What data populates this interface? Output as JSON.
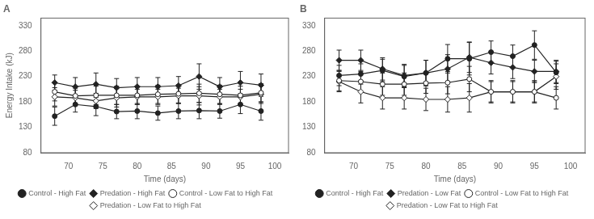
{
  "chart_data": [
    {
      "type": "line",
      "title": "A",
      "xlabel": "Time (days)",
      "ylabel": "Energy Intake (kJ)",
      "x": [
        68,
        71,
        74,
        77,
        80,
        83,
        86,
        89,
        92,
        95,
        98
      ],
      "series": [
        {
          "name": "Control - High Fat",
          "color": "#222222",
          "marker": "circle",
          "line_style": "solid",
          "values": [
            152,
            175,
            171,
            161,
            162,
            158,
            162,
            163,
            162,
            175,
            162
          ],
          "yerr": [
            18,
            15,
            18,
            14,
            15,
            14,
            15,
            16,
            14,
            18,
            18
          ]
        },
        {
          "name": "Predation - High Fat",
          "color": "#222222",
          "marker": "diamond",
          "line_style": "solid",
          "values": [
            218,
            210,
            215,
            208,
            210,
            210,
            212,
            230,
            210,
            218,
            213
          ],
          "yerr": [
            15,
            18,
            22,
            18,
            18,
            18,
            18,
            25,
            18,
            22,
            22
          ]
        },
        {
          "name": "Control - Low Fat to High Fat",
          "color": "#222222",
          "marker": "open circle",
          "line_style": "solid",
          "values": [
            200,
            192,
            193,
            193,
            193,
            195,
            196,
            197,
            195,
            193,
            198
          ],
          "yerr": [
            18,
            15,
            18,
            18,
            18,
            18,
            18,
            18,
            18,
            18,
            18
          ]
        },
        {
          "name": "Predation - Low Fat to High Fat",
          "color": "#222222",
          "marker": "open diamond",
          "line_style": "solid",
          "values": [
            190,
            188,
            182,
            188,
            190,
            190,
            192,
            192,
            190,
            190,
            195
          ],
          "yerr": [
            18,
            15,
            15,
            18,
            15,
            15,
            15,
            18,
            15,
            15,
            18
          ]
        }
      ],
      "xlim": [
        66,
        102
      ],
      "xticks": [
        70,
        75,
        80,
        85,
        90,
        95,
        100
      ],
      "ylim": [
        80,
        345
      ],
      "yticks": [
        80,
        130,
        180,
        230,
        280,
        330
      ],
      "grid": false,
      "legend": "bottom"
    },
    {
      "type": "line",
      "title": "B",
      "xlabel": "Time (days)",
      "x": [
        68,
        71,
        74,
        77,
        80,
        83,
        86,
        89,
        92,
        95,
        98
      ],
      "series": [
        {
          "name": "Control - High Fat",
          "color": "#222222",
          "marker": "circle",
          "line_style": "solid",
          "values": [
            232,
            235,
            242,
            230,
            237,
            265,
            265,
            278,
            270,
            292,
            238
          ],
          "yerr": [
            20,
            20,
            22,
            22,
            25,
            28,
            32,
            22,
            22,
            28,
            22
          ]
        },
        {
          "name": "Predation - Low Fat",
          "color": "#222222",
          "marker": "diamond",
          "line_style": "solid",
          "values": [
            262,
            262,
            245,
            232,
            237,
            245,
            268,
            257,
            248,
            240,
            240
          ],
          "yerr": [
            20,
            20,
            22,
            22,
            25,
            28,
            30,
            22,
            22,
            22,
            22
          ]
        },
        {
          "name": "Control - Low Fat to High Fat",
          "color": "#222222",
          "marker": "open circle",
          "line_style": "solid",
          "values": [
            222,
            220,
            215,
            215,
            217,
            218,
            225,
            200,
            200,
            200,
            188
          ],
          "yerr": [
            20,
            20,
            22,
            22,
            20,
            22,
            25,
            20,
            20,
            20,
            22
          ]
        },
        {
          "name": "Predation - Low Fat to High Fat",
          "color": "#222222",
          "marker": "open diamond",
          "line_style": "solid",
          "values": [
            220,
            200,
            188,
            188,
            185,
            185,
            188,
            200,
            200,
            200,
            230
          ],
          "yerr": [
            20,
            22,
            22,
            22,
            22,
            25,
            28,
            22,
            22,
            22,
            25
          ]
        }
      ],
      "xlim": [
        66,
        102
      ],
      "xticks": [
        70,
        75,
        80,
        85,
        90,
        95,
        100
      ],
      "ylim": [
        80,
        345
      ],
      "yticks": [
        80,
        130,
        180,
        230,
        280,
        330
      ],
      "grid": false,
      "legend": "bottom"
    }
  ]
}
